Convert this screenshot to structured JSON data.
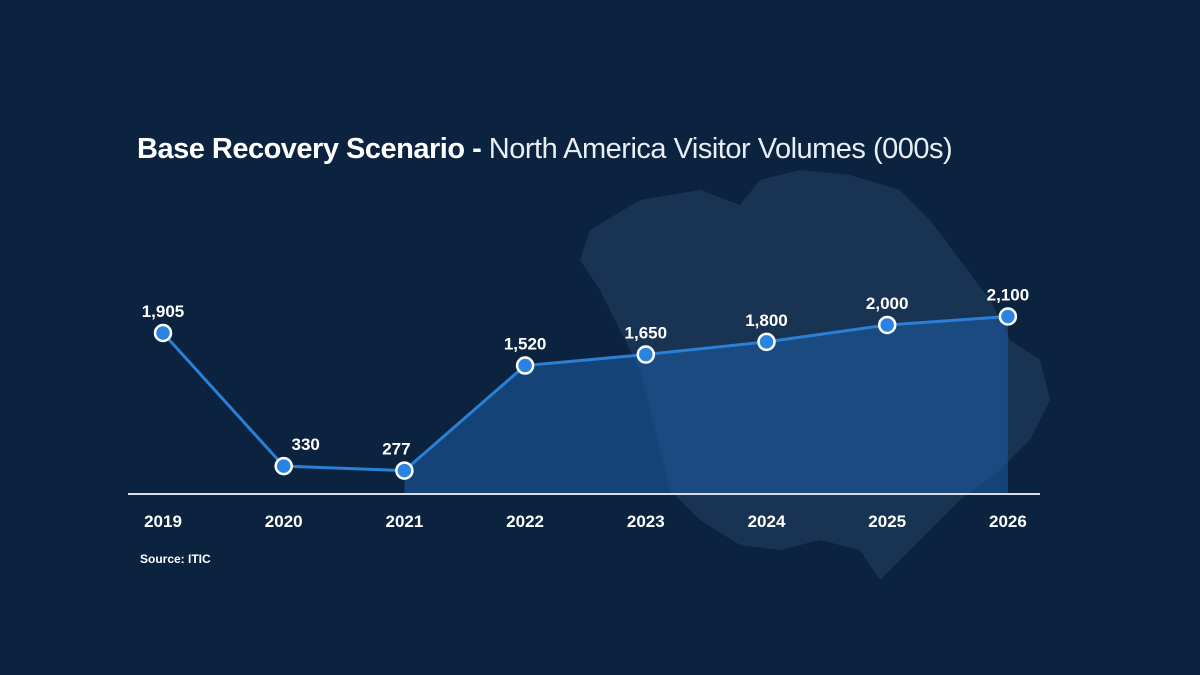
{
  "title": {
    "bold": "Base Recovery Scenario -",
    "light": " North America Visitor Volumes (000s)"
  },
  "source": "Source: ITIC",
  "colors": {
    "background": "#0b233e",
    "line": "#2a7fd6",
    "marker_fill": "#2a83e0",
    "marker_stroke": "#ffffff",
    "area_fill": "#1a5a9e",
    "axis": "#d8dde3"
  },
  "chart_data": {
    "type": "line",
    "title": "Base Recovery Scenario - North America Visitor Volumes (000s)",
    "xlabel": "",
    "ylabel": "Visitor Volumes (000s)",
    "categories": [
      "2019",
      "2020",
      "2021",
      "2022",
      "2023",
      "2024",
      "2025",
      "2026"
    ],
    "values": [
      1905,
      330,
      277,
      1520,
      1650,
      1800,
      2000,
      2100
    ],
    "value_labels": [
      "1,905",
      "330",
      "277",
      "1,520",
      "1,650",
      "1,800",
      "2,000",
      "2,100"
    ],
    "shaded_area_from": "2021",
    "grid": false,
    "legend": "none",
    "annotations": [
      "Source: ITIC"
    ]
  }
}
